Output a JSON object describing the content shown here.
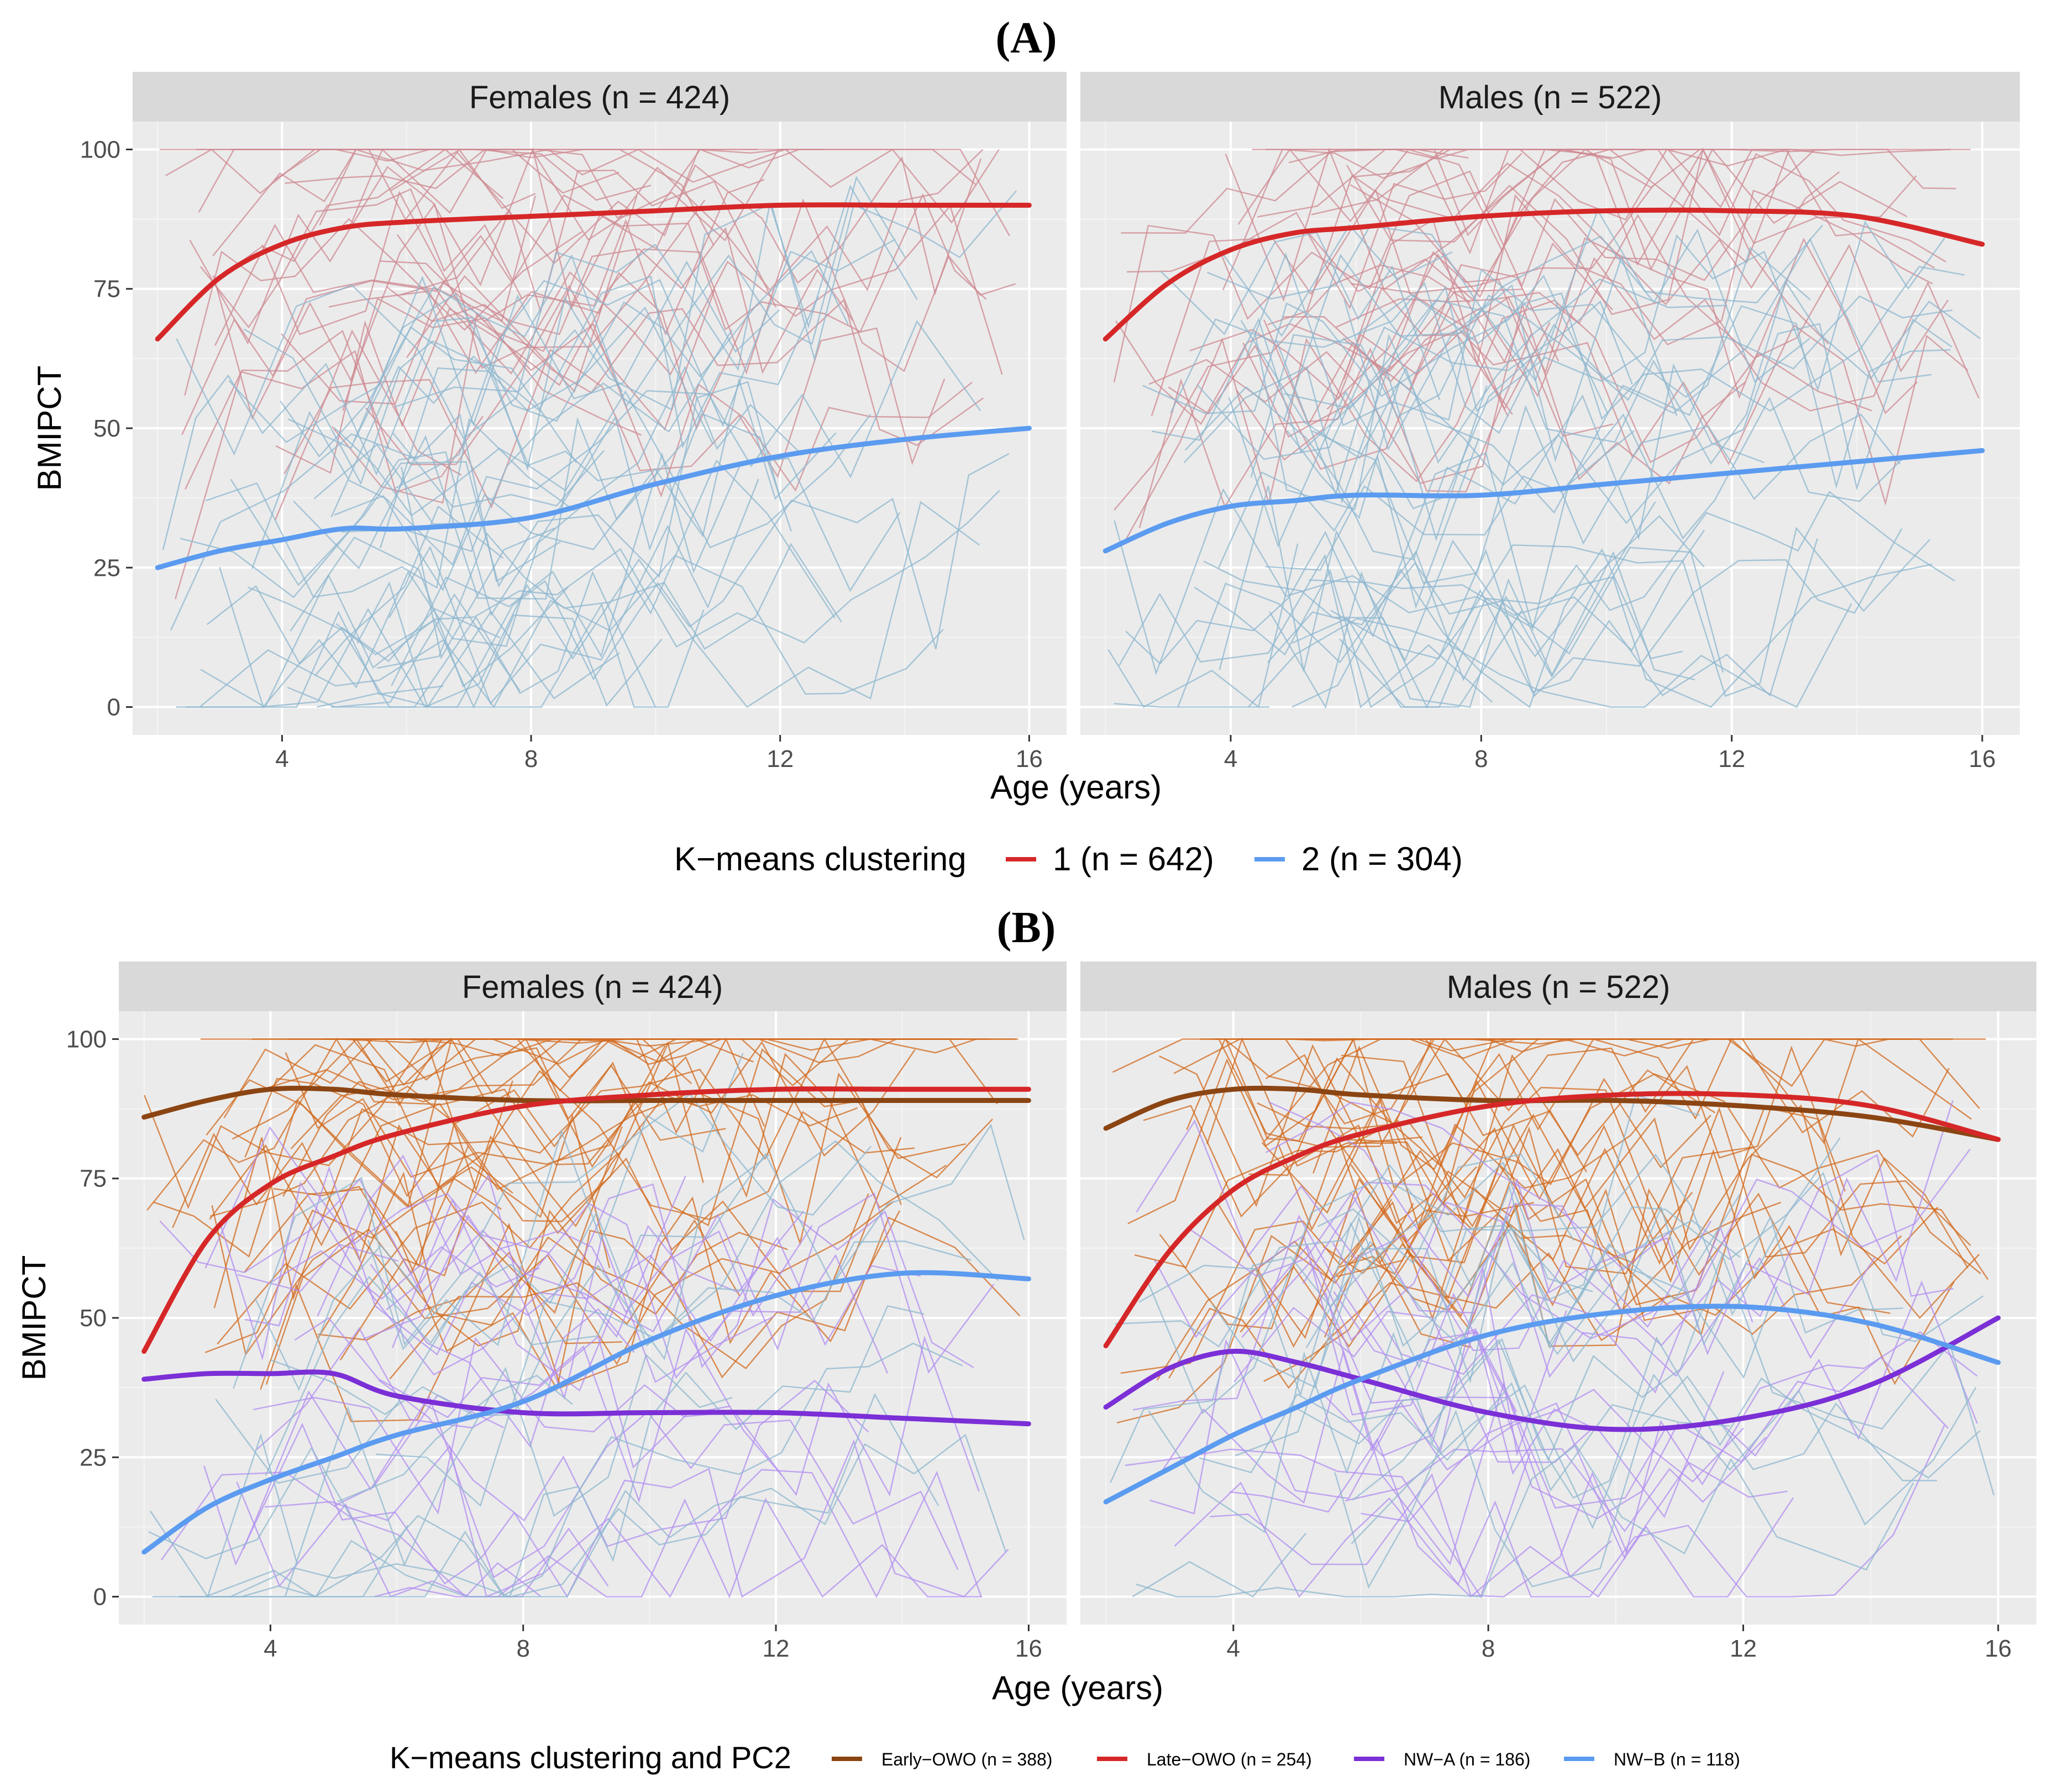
{
  "figure": {
    "panel_a_label": "(A)",
    "panel_b_label": "(B)"
  },
  "chart_data": [
    {
      "type": "line",
      "panel": "(A)",
      "xlabel": "Age (years)",
      "ylabel": "BMIPCT",
      "xlim": [
        1.6,
        16.6
      ],
      "ylim": [
        -5,
        105
      ],
      "xticks": [
        4,
        8,
        12,
        16
      ],
      "yticks": [
        0,
        25,
        50,
        75,
        100
      ],
      "grid": true,
      "legend_position": "bottom",
      "legend_title": "K−means clustering",
      "facets": [
        "Females (n = 424)",
        "Males (n = 522)"
      ],
      "series": [
        {
          "name": "1 (n = 642)",
          "color": "#d62728",
          "thin_color": "#cd8a92",
          "x": [
            2,
            3,
            4,
            5,
            6,
            8,
            10,
            12,
            14,
            16
          ],
          "values": {
            "Females (n = 424)": [
              66,
              77,
              83,
              86,
              87,
              88,
              89,
              90,
              90,
              90
            ],
            "Males (n = 522)": [
              66,
              76,
              82,
              85,
              86,
              88,
              89,
              89,
              88,
              83
            ]
          }
        },
        {
          "name": "2 (n = 304)",
          "color": "#5b9bf0",
          "thin_color": "#8db7cf",
          "x": [
            2,
            3,
            4,
            5,
            6,
            8,
            10,
            12,
            14,
            16
          ],
          "values": {
            "Females (n = 424)": [
              25,
              28,
              30,
              32,
              32,
              34,
              40,
              45,
              48,
              50
            ],
            "Males (n = 522)": [
              28,
              33,
              36,
              37,
              38,
              38,
              40,
              42,
              44,
              46
            ]
          }
        }
      ]
    },
    {
      "type": "line",
      "panel": "(B)",
      "xlabel": "Age (years)",
      "ylabel": "BMIPCT",
      "xlim": [
        1.6,
        16.6
      ],
      "ylim": [
        -5,
        105
      ],
      "xticks": [
        4,
        8,
        12,
        16
      ],
      "yticks": [
        0,
        25,
        50,
        75,
        100
      ],
      "grid": true,
      "legend_position": "bottom",
      "legend_title": "K−means clustering and PC2",
      "facets": [
        "Females (n = 424)",
        "Males (n = 522)"
      ],
      "series": [
        {
          "name": "Early−OWO (n = 388)",
          "color": "#8b4513",
          "thin_color": "#d2691e",
          "x": [
            2,
            3,
            4,
            5,
            6,
            8,
            10,
            12,
            14,
            16
          ],
          "values": {
            "Females (n = 424)": [
              86,
              89,
              91,
              91,
              90,
              89,
              89,
              89,
              89,
              89
            ],
            "Males (n = 522)": [
              84,
              89,
              91,
              91,
              90,
              89,
              89,
              88,
              86,
              82
            ]
          }
        },
        {
          "name": "Late−OWO (n = 254)",
          "color": "#d62728",
          "thin_color": "#d2691e",
          "x": [
            2,
            3,
            4,
            5,
            6,
            8,
            10,
            12,
            14,
            16
          ],
          "values": {
            "Females (n = 424)": [
              44,
              64,
              74,
              79,
              83,
              88,
              90,
              91,
              91,
              91
            ],
            "Males (n = 522)": [
              45,
              62,
              73,
              79,
              83,
              88,
              90,
              90,
              88,
              82
            ]
          }
        },
        {
          "name": "NW−A (n = 186)",
          "color": "#7b2fd6",
          "thin_color": "#b28df0",
          "x": [
            2,
            3,
            4,
            5,
            6,
            8,
            10,
            12,
            14,
            16
          ],
          "values": {
            "Females (n = 424)": [
              39,
              40,
              40,
              40,
              36,
              33,
              33,
              33,
              32,
              31
            ],
            "Males (n = 522)": [
              34,
              41,
              44,
              42,
              39,
              33,
              30,
              32,
              38,
              50
            ]
          }
        },
        {
          "name": "NW−B (n = 118)",
          "color": "#5b9bf0",
          "thin_color": "#8db7cf",
          "x": [
            2,
            3,
            4,
            5,
            6,
            8,
            10,
            12,
            14,
            16
          ],
          "values": {
            "Females (n = 424)": [
              8,
              16,
              21,
              25,
              29,
              35,
              46,
              54,
              58,
              57
            ],
            "Males (n = 522)": [
              17,
              23,
              29,
              34,
              39,
              47,
              51,
              52,
              49,
              42
            ]
          }
        }
      ]
    }
  ]
}
